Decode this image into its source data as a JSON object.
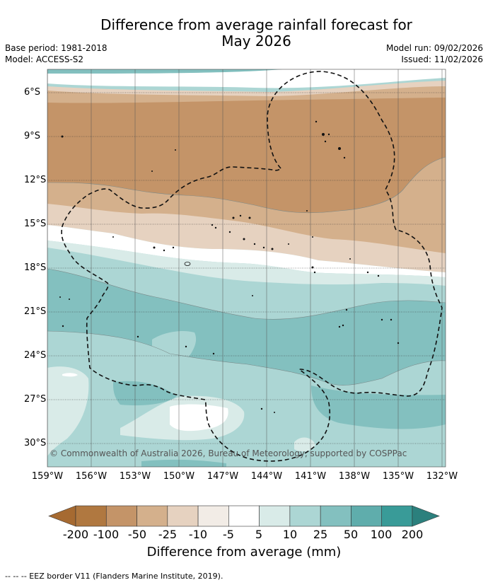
{
  "title": {
    "line1": "Difference from average rainfall forecast for",
    "line2": "May 2026"
  },
  "meta": {
    "base_period": "Base period: 1981-2018",
    "model": "Model: ACCESS-S2",
    "model_run": "Model run: 09/02/2026",
    "issued": "Issued: 11/02/2026"
  },
  "map": {
    "lat_labels": [
      "6°S",
      "9°S",
      "12°S",
      "15°S",
      "18°S",
      "21°S",
      "24°S",
      "27°S",
      "30°S"
    ],
    "lon_labels": [
      "159°W",
      "156°W",
      "153°W",
      "150°W",
      "147°W",
      "144°W",
      "141°W",
      "138°W",
      "135°W",
      "132°W"
    ],
    "copyright": "© Commonwealth of Australia 2026, Bureau of Meteorology, supported by COSPPac"
  },
  "colorbar": {
    "ticks": [
      "-200",
      "-100",
      "-50",
      "-25",
      "-10",
      "-5",
      "5",
      "10",
      "25",
      "50",
      "100",
      "200"
    ],
    "colors": [
      "#a66a31",
      "#b07840",
      "#c49468",
      "#d4b08c",
      "#e6d2c0",
      "#f2ece6",
      "#ffffff",
      "#d9ebe8",
      "#acd6d4",
      "#83c0bf",
      "#5fadac",
      "#399b98",
      "#2b807d"
    ],
    "title": "Difference from average (mm)"
  },
  "legend": {
    "eez": "--  --  -- EEZ border V11 (Flanders Marine Institute, 2019)."
  }
}
